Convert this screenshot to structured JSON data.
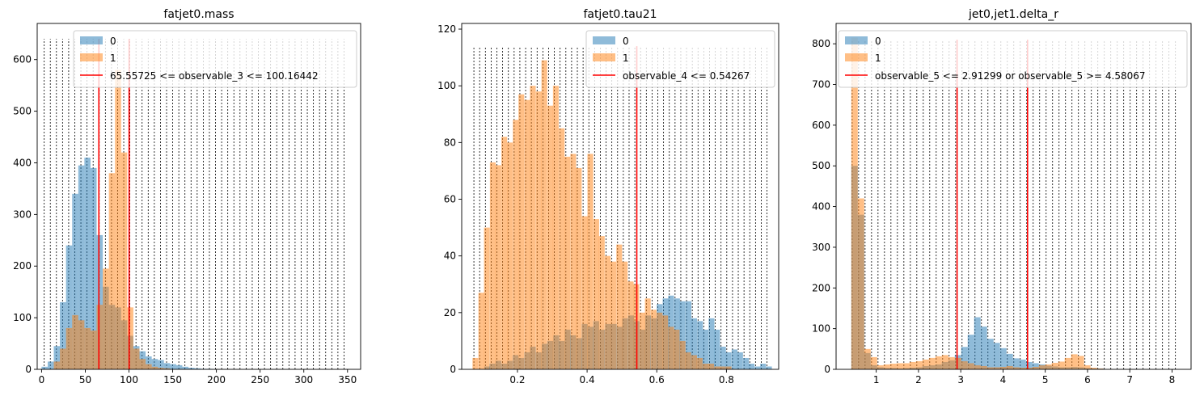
{
  "chart_data": [
    {
      "type": "histogram",
      "title": "fatjet0.mass",
      "xlim": [
        -5,
        365
      ],
      "ylim": [
        0,
        670
      ],
      "xticks": [
        "0",
        "50",
        "100",
        "150",
        "200",
        "250",
        "300",
        "350"
      ],
      "yticks": [
        "0",
        "100",
        "200",
        "300",
        "400",
        "500",
        "600"
      ],
      "xtick_values": [
        0,
        50,
        100,
        150,
        200,
        250,
        300,
        350
      ],
      "ytick_values": [
        0,
        100,
        200,
        300,
        400,
        500,
        600
      ],
      "bin_width": 7,
      "series": [
        {
          "name": "0",
          "color": "#1f77b4",
          "bins": [
            [
              0,
              5
            ],
            [
              7,
              15
            ],
            [
              14,
              45
            ],
            [
              21,
              130
            ],
            [
              28,
              240
            ],
            [
              35,
              340
            ],
            [
              42,
              395
            ],
            [
              49,
              410
            ],
            [
              56,
              390
            ],
            [
              63,
              260
            ],
            [
              70,
              160
            ],
            [
              77,
              125
            ],
            [
              84,
              120
            ],
            [
              91,
              95
            ],
            [
              98,
              65
            ],
            [
              105,
              45
            ],
            [
              112,
              35
            ],
            [
              119,
              25
            ],
            [
              126,
              20
            ],
            [
              133,
              18
            ],
            [
              140,
              12
            ],
            [
              147,
              10
            ],
            [
              154,
              8
            ],
            [
              161,
              5
            ],
            [
              168,
              3
            ],
            [
              175,
              2
            ],
            [
              182,
              1
            ],
            [
              189,
              1
            ]
          ]
        },
        {
          "name": "1",
          "color": "#ff7f0e",
          "bins": [
            [
              14,
              15
            ],
            [
              21,
              40
            ],
            [
              28,
              80
            ],
            [
              35,
              105
            ],
            [
              42,
              95
            ],
            [
              49,
              80
            ],
            [
              56,
              75
            ],
            [
              63,
              125
            ],
            [
              70,
              195
            ],
            [
              77,
              380
            ],
            [
              84,
              580
            ],
            [
              91,
              420
            ],
            [
              98,
              120
            ],
            [
              105,
              40
            ],
            [
              112,
              20
            ],
            [
              119,
              10
            ],
            [
              126,
              5
            ],
            [
              133,
              3
            ],
            [
              140,
              2
            ]
          ]
        }
      ],
      "cuts": [
        65.55725,
        100.16442
      ],
      "cut_label": "65.55725 <= observable_3 <= 100.16442",
      "cut_color": "#ff0000",
      "cut_top": 640,
      "dotted_lines": {
        "start": 3,
        "step": 7,
        "end": 346,
        "top": 640
      },
      "legend": "top-right"
    },
    {
      "type": "histogram",
      "title": "fatjet0.tau21",
      "xlim": [
        0.04,
        0.95
      ],
      "ylim": [
        0,
        122
      ],
      "xticks": [
        "0.2",
        "0.4",
        "0.6",
        "0.8"
      ],
      "yticks": [
        "0",
        "20",
        "40",
        "60",
        "80",
        "100",
        "120"
      ],
      "xtick_values": [
        0.2,
        0.4,
        0.6,
        0.8
      ],
      "ytick_values": [
        0,
        20,
        40,
        60,
        80,
        100,
        120
      ],
      "bin_width": 0.0165,
      "series": [
        {
          "name": "0",
          "color": "#1f77b4",
          "bins": [
            [
              0.105,
              1
            ],
            [
              0.12,
              2
            ],
            [
              0.137,
              3
            ],
            [
              0.154,
              2
            ],
            [
              0.17,
              3
            ],
            [
              0.187,
              5
            ],
            [
              0.203,
              4
            ],
            [
              0.22,
              6
            ],
            [
              0.236,
              8
            ],
            [
              0.253,
              6
            ],
            [
              0.27,
              9
            ],
            [
              0.286,
              10
            ],
            [
              0.303,
              12
            ],
            [
              0.319,
              10
            ],
            [
              0.336,
              14
            ],
            [
              0.352,
              12
            ],
            [
              0.369,
              11
            ],
            [
              0.385,
              16
            ],
            [
              0.402,
              15
            ],
            [
              0.418,
              17
            ],
            [
              0.435,
              14
            ],
            [
              0.452,
              16
            ],
            [
              0.468,
              16
            ],
            [
              0.485,
              15
            ],
            [
              0.501,
              18
            ],
            [
              0.518,
              19
            ],
            [
              0.534,
              17
            ],
            [
              0.551,
              14
            ],
            [
              0.567,
              19
            ],
            [
              0.584,
              18
            ],
            [
              0.6,
              23
            ],
            [
              0.617,
              25
            ],
            [
              0.633,
              26
            ],
            [
              0.65,
              25
            ],
            [
              0.666,
              24
            ],
            [
              0.683,
              24
            ],
            [
              0.699,
              18
            ],
            [
              0.716,
              17
            ],
            [
              0.732,
              14
            ],
            [
              0.749,
              18
            ],
            [
              0.765,
              14
            ],
            [
              0.782,
              8
            ],
            [
              0.798,
              6
            ],
            [
              0.815,
              7
            ],
            [
              0.831,
              6
            ],
            [
              0.848,
              4
            ],
            [
              0.864,
              2
            ],
            [
              0.881,
              1
            ],
            [
              0.897,
              2
            ],
            [
              0.914,
              1
            ]
          ]
        },
        {
          "name": "1",
          "color": "#ff7f0e",
          "bins": [
            [
              0.071,
              4
            ],
            [
              0.088,
              27
            ],
            [
              0.104,
              50
            ],
            [
              0.121,
              73
            ],
            [
              0.137,
              72
            ],
            [
              0.154,
              82
            ],
            [
              0.17,
              80
            ],
            [
              0.187,
              88
            ],
            [
              0.203,
              97
            ],
            [
              0.22,
              95
            ],
            [
              0.236,
              100
            ],
            [
              0.253,
              98
            ],
            [
              0.269,
              109
            ],
            [
              0.286,
              93
            ],
            [
              0.302,
              100
            ],
            [
              0.319,
              85
            ],
            [
              0.335,
              75
            ],
            [
              0.352,
              76
            ],
            [
              0.368,
              71
            ],
            [
              0.385,
              54
            ],
            [
              0.401,
              76
            ],
            [
              0.418,
              53
            ],
            [
              0.434,
              47
            ],
            [
              0.451,
              40
            ],
            [
              0.467,
              38
            ],
            [
              0.484,
              44
            ],
            [
              0.5,
              38
            ],
            [
              0.517,
              31
            ],
            [
              0.533,
              30
            ],
            [
              0.55,
              20
            ],
            [
              0.566,
              25
            ],
            [
              0.583,
              21
            ],
            [
              0.6,
              20
            ],
            [
              0.616,
              19
            ],
            [
              0.633,
              15
            ],
            [
              0.649,
              14
            ],
            [
              0.666,
              10
            ],
            [
              0.682,
              6
            ],
            [
              0.699,
              5
            ],
            [
              0.715,
              4
            ],
            [
              0.732,
              2
            ],
            [
              0.748,
              2
            ],
            [
              0.765,
              1
            ],
            [
              0.781,
              1
            ],
            [
              0.798,
              1
            ]
          ]
        }
      ],
      "cuts": [
        0.54267
      ],
      "cut_label": "observable_4 <= 0.54267",
      "cut_color": "#ff0000",
      "cut_top": 114,
      "dotted_lines": {
        "start": 0.075,
        "step": 0.0165,
        "end": 0.93,
        "top": 114
      },
      "legend": "top-right"
    },
    {
      "type": "histogram",
      "title": "jet0,jet1.delta_r",
      "xlim": [
        0.05,
        8.45
      ],
      "ylim": [
        0,
        850
      ],
      "xticks": [
        "1",
        "2",
        "3",
        "4",
        "5",
        "6",
        "7",
        "8"
      ],
      "yticks": [
        "0",
        "100",
        "200",
        "300",
        "400",
        "500",
        "600",
        "700",
        "800"
      ],
      "xtick_values": [
        1,
        2,
        3,
        4,
        5,
        6,
        7,
        8
      ],
      "ytick_values": [
        0,
        100,
        200,
        300,
        400,
        500,
        600,
        700,
        800
      ],
      "bin_width": 0.153,
      "series": [
        {
          "name": "0",
          "color": "#1f77b4",
          "bins": [
            [
              0.41,
              500
            ],
            [
              0.563,
              380
            ],
            [
              0.716,
              40
            ],
            [
              0.869,
              10
            ],
            [
              1.022,
              5
            ],
            [
              1.175,
              3
            ],
            [
              1.328,
              3
            ],
            [
              1.481,
              2
            ],
            [
              1.634,
              3
            ],
            [
              1.787,
              4
            ],
            [
              1.94,
              5
            ],
            [
              2.093,
              8
            ],
            [
              2.246,
              10
            ],
            [
              2.399,
              12
            ],
            [
              2.552,
              18
            ],
            [
              2.705,
              22
            ],
            [
              2.858,
              35
            ],
            [
              3.011,
              55
            ],
            [
              3.164,
              85
            ],
            [
              3.317,
              128
            ],
            [
              3.47,
              105
            ],
            [
              3.623,
              75
            ],
            [
              3.776,
              65
            ],
            [
              3.929,
              52
            ],
            [
              4.082,
              38
            ],
            [
              4.235,
              27
            ],
            [
              4.388,
              24
            ],
            [
              4.541,
              18
            ],
            [
              4.694,
              15
            ],
            [
              4.847,
              12
            ],
            [
              5,
              9
            ],
            [
              5.153,
              7
            ],
            [
              5.306,
              5
            ],
            [
              5.459,
              5
            ],
            [
              5.612,
              6
            ],
            [
              5.765,
              5
            ],
            [
              5.918,
              3
            ],
            [
              6.071,
              2
            ],
            [
              6.224,
              2
            ]
          ]
        },
        {
          "name": "1",
          "color": "#ff7f0e",
          "bins": [
            [
              0.41,
              815
            ],
            [
              0.563,
              420
            ],
            [
              0.716,
              50
            ],
            [
              0.869,
              30
            ],
            [
              1.022,
              10
            ],
            [
              1.175,
              12
            ],
            [
              1.328,
              14
            ],
            [
              1.481,
              15
            ],
            [
              1.634,
              15
            ],
            [
              1.787,
              18
            ],
            [
              1.94,
              20
            ],
            [
              2.093,
              24
            ],
            [
              2.246,
              28
            ],
            [
              2.399,
              32
            ],
            [
              2.552,
              35
            ],
            [
              2.705,
              30
            ],
            [
              2.858,
              28
            ],
            [
              3.011,
              20
            ],
            [
              3.164,
              15
            ],
            [
              3.317,
              10
            ],
            [
              3.47,
              8
            ],
            [
              3.623,
              5
            ],
            [
              3.776,
              5
            ],
            [
              3.929,
              6
            ],
            [
              4.082,
              8
            ],
            [
              4.235,
              5
            ],
            [
              4.388,
              4
            ],
            [
              4.541,
              4
            ],
            [
              4.694,
              6
            ],
            [
              4.847,
              10
            ],
            [
              5,
              12
            ],
            [
              5.153,
              16
            ],
            [
              5.306,
              19
            ],
            [
              5.459,
              28
            ],
            [
              5.612,
              37
            ],
            [
              5.765,
              33
            ],
            [
              5.918,
              10
            ],
            [
              6.071,
              4
            ],
            [
              6.224,
              2
            ]
          ]
        }
      ],
      "cuts": [
        2.91299,
        4.58067
      ],
      "cut_label": "observable_5 <= 2.91299 or observable_5 >= 4.58067",
      "cut_color": "#ff0000",
      "cut_top": 810,
      "dotted_lines": {
        "start": 0.43,
        "step": 0.153,
        "end": 8.1,
        "top": 810
      },
      "legend": "top-right"
    }
  ]
}
